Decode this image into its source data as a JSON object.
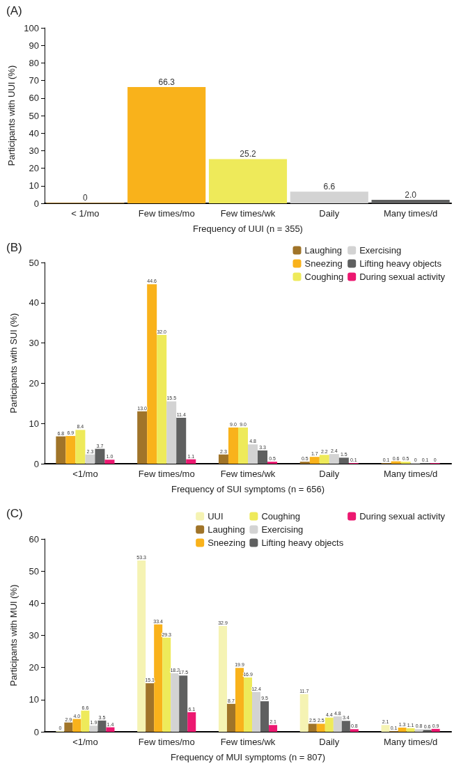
{
  "chart_data": [
    {
      "type": "bar",
      "title": "(A)",
      "xlabel": "Frequency of UUI (n = 355)",
      "ylabel": "Participants with UUI (%)",
      "categories": [
        "< 1/mo",
        "Few times/mo",
        "Few times/wk",
        "Daily",
        "Many times/d"
      ],
      "values": [
        0,
        66.3,
        25.2,
        6.6,
        2.0
      ],
      "value_labels": [
        "0",
        "66.3",
        "25.2",
        "6.6",
        "2.0"
      ],
      "colors": [
        "#a07429",
        "#f9b21b",
        "#eeea5a",
        "#d3d3d3",
        "#5f6060"
      ],
      "ylim": [
        0,
        100
      ],
      "yticks": [
        0,
        10,
        20,
        30,
        40,
        50,
        60,
        70,
        80,
        90,
        100
      ],
      "grid": false
    },
    {
      "type": "bar",
      "title": "(B)",
      "xlabel": "Frequency of SUI symptoms (n = 656)",
      "ylabel": "Participants with SUI (%)",
      "categories": [
        "<1/mo",
        "Few times/mo",
        "Few times/wk",
        "Daily",
        "Many times/d"
      ],
      "ylim": [
        0,
        50
      ],
      "yticks": [
        0,
        10,
        20,
        30,
        40,
        50
      ],
      "grid": false,
      "legend": "top right",
      "series": [
        {
          "name": "Laughing",
          "color": "#a07429",
          "values": [
            6.8,
            13.0,
            2.3,
            0.5,
            0.1
          ],
          "value_labels": [
            "6.8",
            "13.0",
            "2.3",
            "0.5",
            "0.1"
          ]
        },
        {
          "name": "Sneezing",
          "color": "#f9b21b",
          "values": [
            6.9,
            44.6,
            9.0,
            1.7,
            0.6
          ],
          "value_labels": [
            "6.9",
            "44.6",
            "9.0",
            "1.7",
            "0.6"
          ]
        },
        {
          "name": "Coughing",
          "color": "#eeea5a",
          "values": [
            8.4,
            32.0,
            9.0,
            2.2,
            0.5
          ],
          "value_labels": [
            "8.4",
            "32.0",
            "9.0",
            "2.2",
            "0.5"
          ]
        },
        {
          "name": "Exercising",
          "color": "#d3d3d3",
          "values": [
            2.3,
            15.5,
            4.8,
            2.4,
            0
          ],
          "value_labels": [
            "2.3",
            "15.5",
            "4.8",
            "2.4",
            "0"
          ]
        },
        {
          "name": "Lifting heavy objects",
          "color": "#5f6060",
          "values": [
            3.7,
            11.4,
            3.3,
            1.5,
            0.1
          ],
          "value_labels": [
            "3.7",
            "11.4",
            "3.3",
            "1.5",
            "0.1"
          ]
        },
        {
          "name": "During sexual activity",
          "color": "#ec1870",
          "values": [
            1.0,
            1.1,
            0.5,
            0.1,
            0
          ],
          "value_labels": [
            "1.0",
            "1.1",
            "0.5",
            "0.1",
            "0"
          ]
        }
      ]
    },
    {
      "type": "bar",
      "title": "(C)",
      "xlabel": "Frequency of MUI symptoms (n = 807)",
      "ylabel": "Participants with MUI (%)",
      "categories": [
        "<1/mo",
        "Few times/mo",
        "Few times/wk",
        "Daily",
        "Many times/d"
      ],
      "ylim": [
        0,
        60
      ],
      "yticks": [
        0,
        10,
        20,
        30,
        40,
        50,
        60
      ],
      "grid": false,
      "legend": "top right",
      "series": [
        {
          "name": "UUI",
          "color": "#f5f3b3",
          "values": [
            0,
            53.3,
            32.9,
            11.7,
            2.1
          ],
          "value_labels": [
            "0",
            "53.3",
            "32.9",
            "11.7",
            "2.1"
          ]
        },
        {
          "name": "Laughing",
          "color": "#a07429",
          "values": [
            2.9,
            15.1,
            8.7,
            2.5,
            0.1
          ],
          "value_labels": [
            "2.9",
            "15.1",
            "8.7",
            "2.5",
            "0.1"
          ]
        },
        {
          "name": "Sneezing",
          "color": "#f9b21b",
          "values": [
            4.0,
            33.4,
            19.9,
            2.5,
            1.3
          ],
          "value_labels": [
            "4.0",
            "33.4",
            "19.9",
            "2.5",
            "1.3"
          ]
        },
        {
          "name": "Coughing",
          "color": "#eeea5a",
          "values": [
            6.6,
            29.3,
            16.9,
            4.4,
            1.1
          ],
          "value_labels": [
            "6.6",
            "29.3",
            "16.9",
            "4.4",
            "1.1"
          ]
        },
        {
          "name": "Exercising",
          "color": "#d3d3d3",
          "values": [
            1.9,
            18.2,
            12.4,
            4.8,
            0.8
          ],
          "value_labels": [
            "1.9",
            "18.2",
            "12.4",
            "4.8",
            "0.8"
          ]
        },
        {
          "name": "Lifting heavy objects",
          "color": "#5f6060",
          "values": [
            3.5,
            17.5,
            9.5,
            3.4,
            0.6
          ],
          "value_labels": [
            "3.5",
            "17.5",
            "9.5",
            "3.4",
            "0.6"
          ]
        },
        {
          "name": "During sexual activity",
          "color": "#ec1870",
          "values": [
            1.4,
            6.1,
            2.1,
            0.8,
            0.9
          ],
          "value_labels": [
            "1.4",
            "6.1",
            "2.1",
            "0.8",
            "0.9"
          ]
        }
      ]
    }
  ]
}
